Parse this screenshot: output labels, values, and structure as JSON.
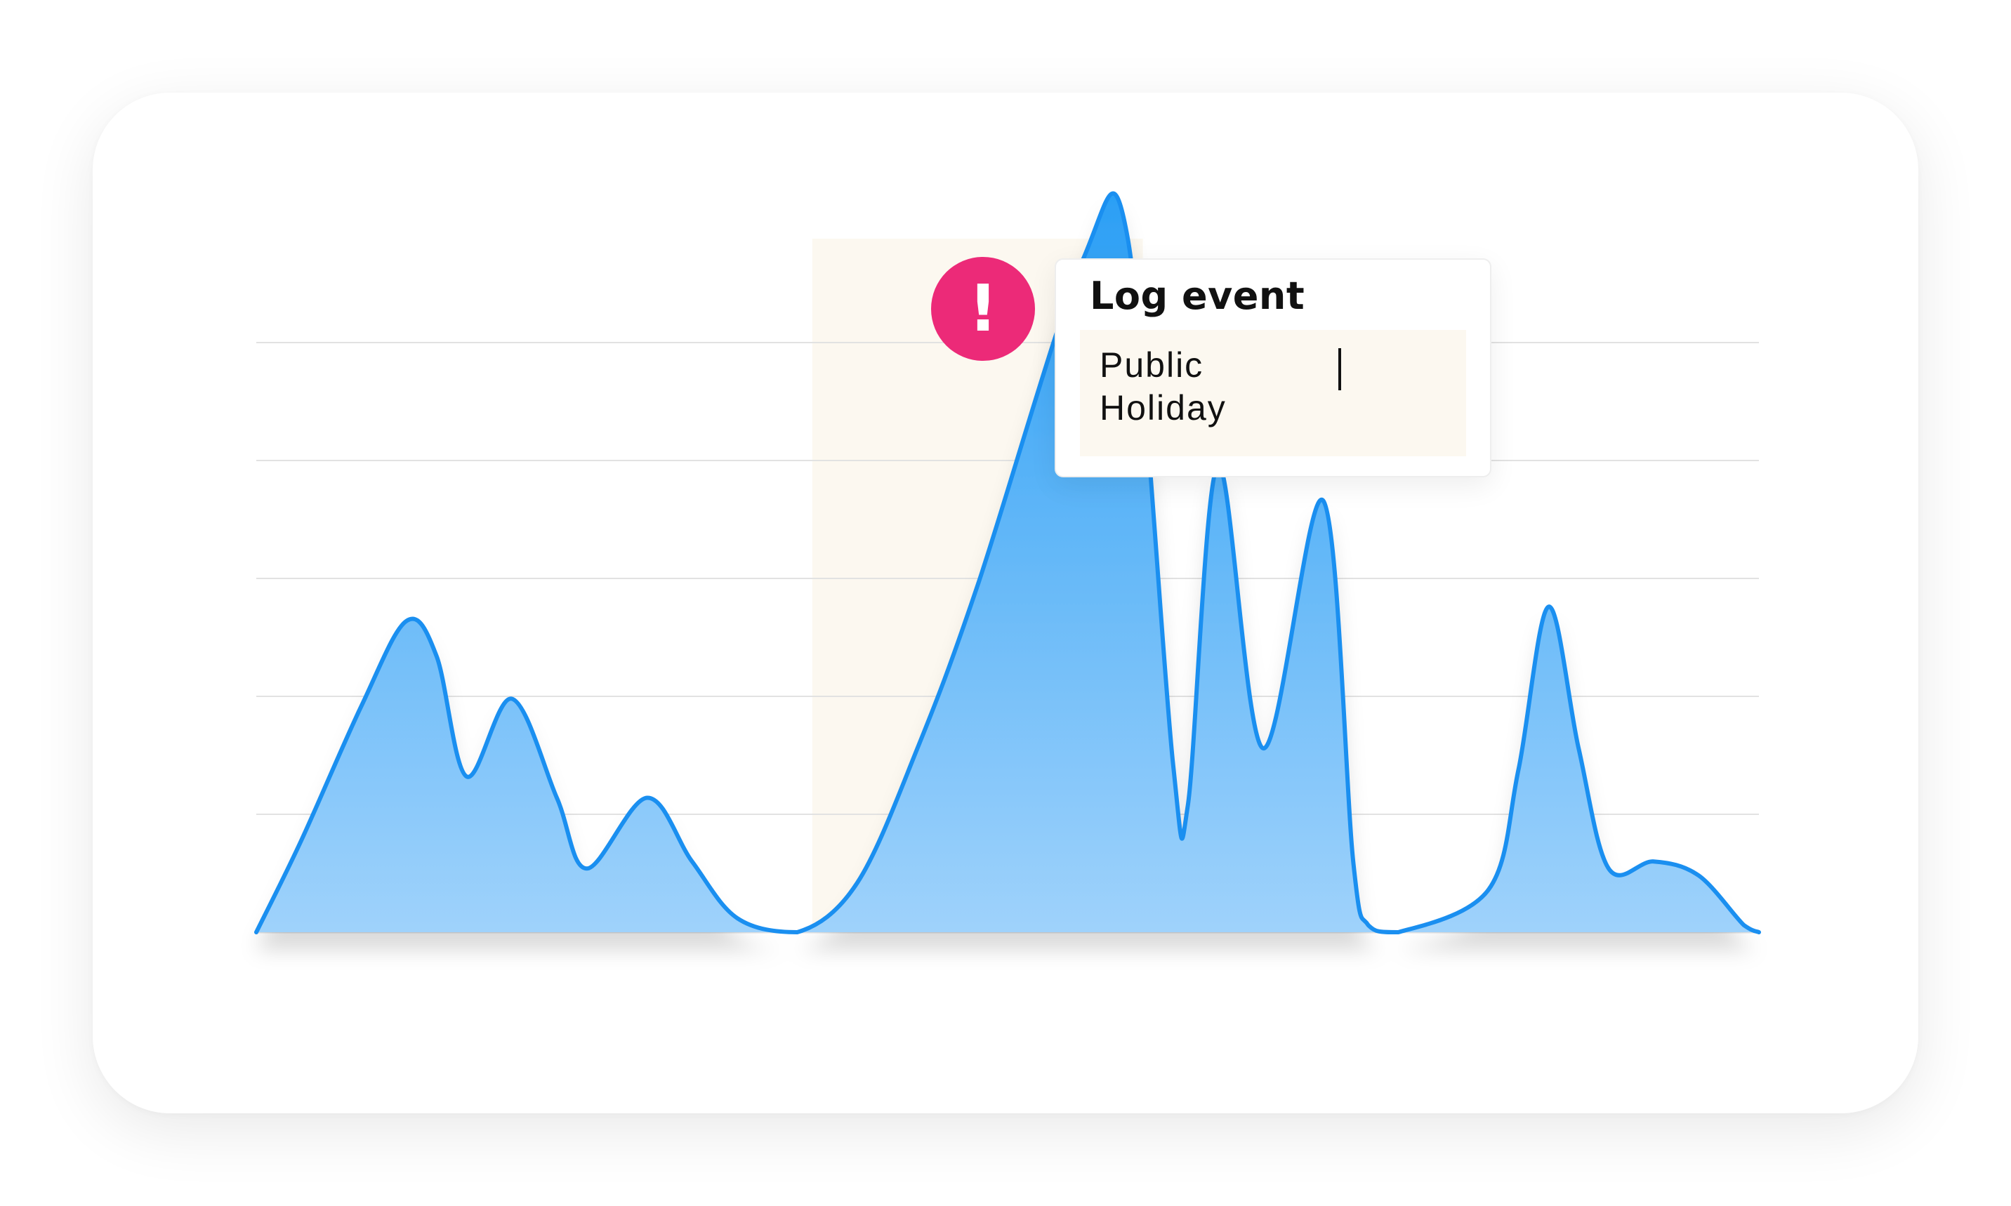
{
  "chart_data": {
    "type": "area",
    "title": "",
    "xlabel": "",
    "ylabel": "",
    "xlim": [
      0,
      100
    ],
    "ylim": [
      0,
      100
    ],
    "gridlines": 5,
    "grid": true,
    "highlighted_range": [
      37,
      59
    ],
    "series": [
      {
        "x": [
          0,
          3,
          7,
          10,
          12,
          14,
          17,
          20,
          22,
          26,
          29,
          32,
          36,
          40,
          44,
          48,
          55,
          58,
          61,
          62,
          64,
          67,
          71,
          73,
          74,
          76,
          82,
          84,
          86,
          88,
          90,
          93,
          96,
          99,
          100
        ],
        "values": [
          0,
          13,
          32,
          44,
          39,
          22,
          33,
          19,
          9,
          19,
          10,
          2,
          0,
          7,
          26,
          49,
          95,
          98,
          24,
          18,
          66,
          26,
          61,
          10,
          1,
          0,
          6,
          23,
          46,
          26,
          9,
          10,
          8,
          1,
          0
        ]
      }
    ],
    "colors": {
      "line": "#1a8ff0",
      "fill_top": "#2b9ff5",
      "fill_bottom": "#9fd2fb",
      "highlight": "#fcf8f0",
      "grid": "#e2e2e2"
    }
  },
  "event_marker": {
    "icon": "exclamation-icon",
    "glyph": "!",
    "color": "#ec2a78"
  },
  "log_event": {
    "title": "Log event",
    "input_value": "Public Holiday"
  }
}
